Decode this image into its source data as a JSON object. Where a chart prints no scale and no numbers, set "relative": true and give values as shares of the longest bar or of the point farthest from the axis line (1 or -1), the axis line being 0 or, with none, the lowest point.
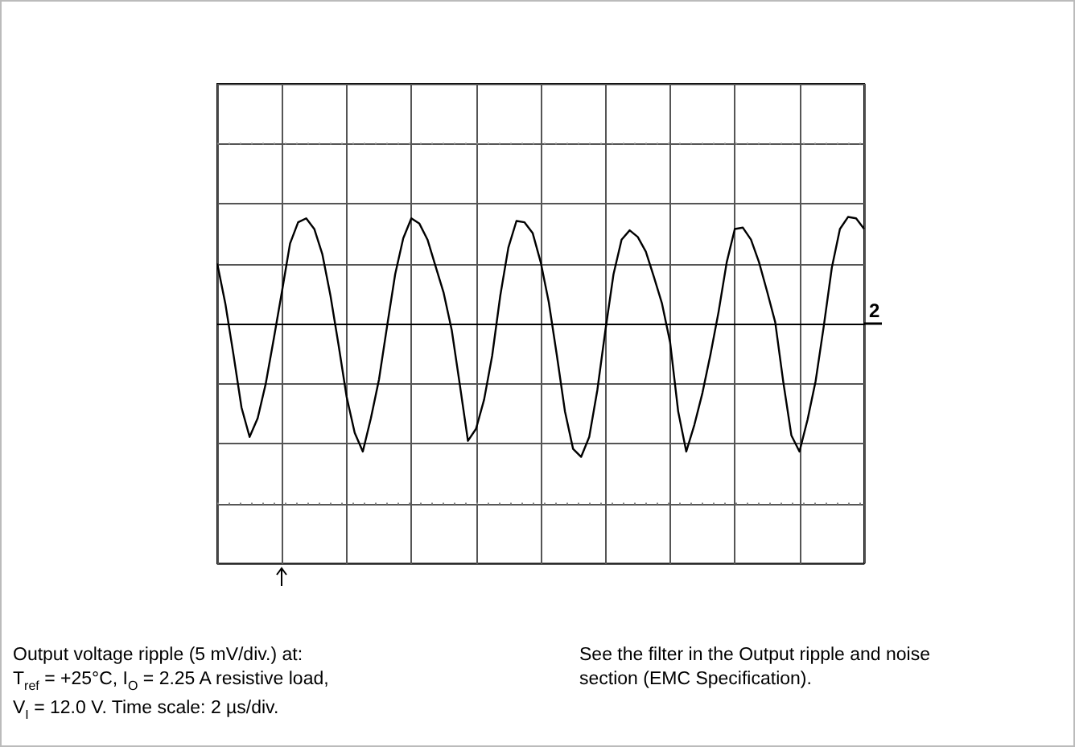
{
  "chart_data": {
    "type": "line",
    "relative": true,
    "categories": [
      null,
      null,
      null,
      null,
      null,
      null,
      null,
      null,
      null,
      null,
      null,
      null,
      null,
      null,
      null,
      null,
      null,
      null,
      null,
      null,
      null,
      null,
      null,
      null,
      null,
      null,
      null,
      null,
      null,
      null,
      null,
      null,
      null,
      null,
      null,
      null,
      null,
      null,
      null,
      null,
      null,
      null,
      null,
      null,
      null,
      null,
      null,
      null,
      null,
      null,
      null,
      null,
      null,
      null,
      null,
      null,
      null,
      null,
      null,
      null,
      null,
      null,
      null,
      null,
      null,
      null,
      null,
      null,
      null,
      null,
      null,
      null,
      null,
      null,
      null,
      null,
      null,
      null,
      null,
      null,
      null
    ],
    "series": [
      {
        "color": "#000000",
        "values": [
          0.45,
          0.15,
          -0.23,
          -0.63,
          -0.85,
          -0.71,
          -0.45,
          -0.11,
          0.24,
          0.6,
          0.76,
          0.79,
          0.71,
          0.52,
          0.21,
          -0.16,
          -0.55,
          -0.82,
          -0.96,
          -0.71,
          -0.42,
          -0.02,
          0.37,
          0.64,
          0.79,
          0.75,
          0.63,
          0.43,
          0.23,
          -0.05,
          -0.46,
          -0.88,
          -0.79,
          -0.57,
          -0.24,
          0.21,
          0.57,
          0.77,
          0.76,
          0.68,
          0.46,
          0.16,
          -0.24,
          -0.66,
          -0.94,
          -1,
          -0.85,
          -0.5,
          -0.05,
          0.37,
          0.63,
          0.7,
          0.65,
          0.54,
          0.35,
          0.15,
          -0.14,
          -0.66,
          -0.96,
          -0.76,
          -0.52,
          -0.23,
          0.09,
          0.46,
          0.71,
          0.72,
          0.63,
          0.46,
          0.24,
          0.01,
          -0.44,
          -0.84,
          -0.96,
          -0.72,
          -0.43,
          -0.02,
          0.42,
          0.71,
          0.8,
          0.79,
          0.71
        ]
      }
    ],
    "grid": true,
    "line_style": "solid",
    "annotations": [
      "2",
      "Output voltage ripple (5 mV/div.) at:\nT$_{ref}$  = +25°C, I$_{O}$ = 2.25 A resistive load,\nV$_{I}$  = 12.0 V. Time scale: 2 µs/div.",
      "See the filter in the Output ripple and noise\nsection (EMC Specification)."
    ]
  }
}
